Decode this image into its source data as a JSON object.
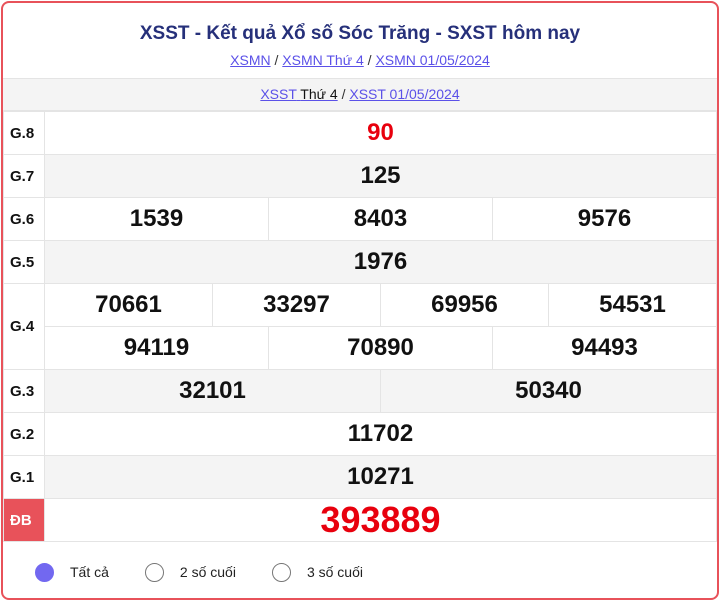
{
  "title": "XSST - Kết quả Xổ số Sóc Trăng - SXST hôm nay",
  "breadcrumb": [
    "XSMN",
    "XSMN Thứ 4",
    "XSMN 01/05/2024"
  ],
  "sub": {
    "link1": "XSST",
    "link1_rest": "Thứ 4",
    "link2": "XSST 01/05/2024"
  },
  "prizes": {
    "g8": {
      "label": "G.8",
      "values": [
        "90"
      ]
    },
    "g7": {
      "label": "G.7",
      "values": [
        "125"
      ]
    },
    "g6": {
      "label": "G.6",
      "values": [
        "1539",
        "8403",
        "9576"
      ]
    },
    "g5": {
      "label": "G.5",
      "values": [
        "1976"
      ]
    },
    "g4": {
      "label": "G.4",
      "values": [
        "70661",
        "33297",
        "69956",
        "54531",
        "94119",
        "70890",
        "94493"
      ]
    },
    "g3": {
      "label": "G.3",
      "values": [
        "32101",
        "50340"
      ]
    },
    "g2": {
      "label": "G.2",
      "values": [
        "11702"
      ]
    },
    "g1": {
      "label": "G.1",
      "values": [
        "10271"
      ]
    },
    "db": {
      "label": "ĐB",
      "values": [
        "393889"
      ]
    }
  },
  "filters": [
    {
      "label": "Tất cả",
      "selected": true
    },
    {
      "label": "2 số cuối",
      "selected": false
    },
    {
      "label": "3 số cuối",
      "selected": false
    }
  ],
  "colors": {
    "accent": "#e8525a",
    "title": "#26307a",
    "link": "#5b51e8",
    "special": "#e8000d",
    "radio": "#7268f0"
  }
}
